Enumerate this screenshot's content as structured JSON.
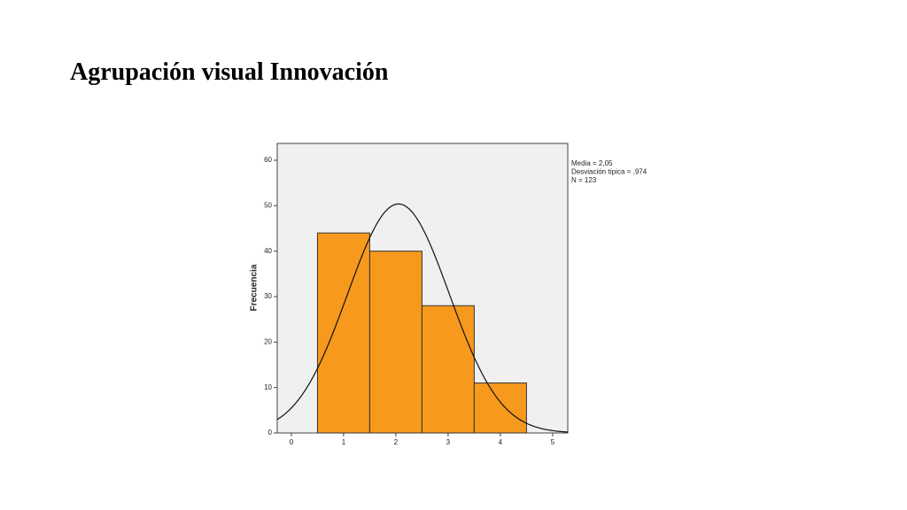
{
  "slide_title": "Agrupación visual Innovación",
  "chart_data": {
    "type": "histogram",
    "bins": [
      0.5,
      1.5,
      2.5,
      3.5,
      4.5
    ],
    "values": [
      44,
      40,
      28,
      11
    ],
    "color": "#f7991c",
    "ylabel": "Frecuencia",
    "xlim": [
      -0.27,
      5.29
    ],
    "ylim": [
      0,
      63.7
    ],
    "xticks": [
      0,
      1,
      2,
      3,
      4,
      5
    ],
    "yticks": [
      0,
      10,
      20,
      30,
      40,
      50,
      60
    ],
    "normal_curve": {
      "mean": 2.05,
      "sd": 0.974,
      "n": 123
    },
    "stats_labels": [
      "Media = 2,05",
      "Desviación típica = ,974",
      "N = 123"
    ]
  }
}
